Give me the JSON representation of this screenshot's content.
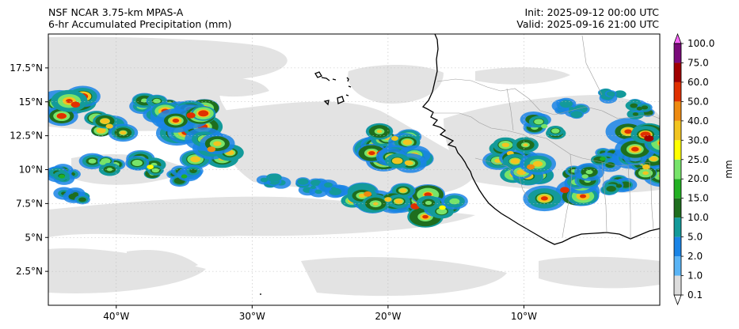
{
  "header": {
    "left_line1": "NSF NCAR 3.75-km MPAS-A",
    "left_line2": "6-hr Accumulated Precipitation (mm)",
    "right_line1": "Init: 2025-09-12 00:00 UTC",
    "right_line2": "Valid: 2025-09-16 21:00 UTC"
  },
  "axes": {
    "lon_range": [
      -45,
      0
    ],
    "lat_range": [
      0,
      20
    ],
    "lon_ticks": [
      {
        "value": -40,
        "label": "40°W"
      },
      {
        "value": -30,
        "label": "30°W"
      },
      {
        "value": -20,
        "label": "20°W"
      },
      {
        "value": -10,
        "label": "10°W"
      }
    ],
    "lat_ticks": [
      {
        "value": 2.5,
        "label": "2.5°N"
      },
      {
        "value": 5,
        "label": "5°N"
      },
      {
        "value": 7.5,
        "label": "7.5°N"
      },
      {
        "value": 10,
        "label": "10°N"
      },
      {
        "value": 12.5,
        "label": "12.5°N"
      },
      {
        "value": 15,
        "label": "15°N"
      },
      {
        "value": 17.5,
        "label": "17.5°N"
      }
    ]
  },
  "colorbar": {
    "unit_label": "mm",
    "levels": [
      "0.1",
      "1.0",
      "2.0",
      "5.0",
      "10.0",
      "15.0",
      "20.0",
      "25.0",
      "30.0",
      "40.0",
      "50.0",
      "60.0",
      "75.0",
      "100.0"
    ],
    "colors": [
      "#ffffff",
      "#dcdcdc",
      "#5ab4f5",
      "#1a84e6",
      "#139a9a",
      "#1e6e1e",
      "#22b022",
      "#77e46a",
      "#ffff00",
      "#f2c420",
      "#ee8a10",
      "#e03000",
      "#a00000",
      "#7a0a7a",
      "#ff66ff"
    ]
  },
  "chart_data": {
    "type": "map",
    "variable": "6-hr Accumulated Precipitation",
    "units": "mm",
    "lon_range": [
      -45,
      0
    ],
    "lat_range": [
      0,
      20
    ],
    "precip_cells": [
      {
        "region": "north-west band",
        "lon": -43,
        "lat": 14.8,
        "value": 55
      },
      {
        "region": "north-west band",
        "lon": -40.5,
        "lat": 13.2,
        "value": 32
      },
      {
        "region": "north-west band",
        "lon": -37,
        "lat": 14.5,
        "value": 28
      },
      {
        "region": "north-west band",
        "lon": -35,
        "lat": 13.5,
        "value": 62
      },
      {
        "region": "north-west band",
        "lon": -33,
        "lat": 11.5,
        "value": 45
      },
      {
        "region": "north-west band",
        "lon": -34.5,
        "lat": 14,
        "value": 52
      },
      {
        "region": "north-west band",
        "lon": -41,
        "lat": 10.5,
        "value": 22
      },
      {
        "region": "north-west band",
        "lon": -44,
        "lat": 9.5,
        "value": 18
      },
      {
        "region": "north-west band",
        "lon": -37.5,
        "lat": 10.2,
        "value": 26
      },
      {
        "region": "north-west band",
        "lon": -35,
        "lat": 9.5,
        "value": 16
      },
      {
        "region": "north-west band",
        "lon": -43,
        "lat": 8.2,
        "value": 12
      },
      {
        "region": "mid-Atlantic line",
        "lon": -28.5,
        "lat": 9.2,
        "value": 6
      },
      {
        "region": "mid-Atlantic line",
        "lon": -25.5,
        "lat": 8.7,
        "value": 8
      },
      {
        "region": "mid-Atlantic line",
        "lon": -24,
        "lat": 8.6,
        "value": 5
      },
      {
        "region": "central cluster",
        "lon": -20.5,
        "lat": 11.2,
        "value": 55
      },
      {
        "region": "central cluster",
        "lon": -19.5,
        "lat": 12.3,
        "value": 30
      },
      {
        "region": "central cluster",
        "lon": -18.5,
        "lat": 10.5,
        "value": 38
      },
      {
        "region": "central cluster",
        "lon": -21.5,
        "lat": 8.2,
        "value": 42
      },
      {
        "region": "central cluster",
        "lon": -18,
        "lat": 7.3,
        "value": 58
      },
      {
        "region": "central cluster",
        "lon": -16,
        "lat": 7.2,
        "value": 26
      },
      {
        "region": "central cluster",
        "lon": -20,
        "lat": 7.8,
        "value": 33
      },
      {
        "region": "West Africa",
        "lon": -11,
        "lat": 11.2,
        "value": 30
      },
      {
        "region": "West Africa",
        "lon": -9.5,
        "lat": 10.2,
        "value": 42
      },
      {
        "region": "West Africa",
        "lon": -8.5,
        "lat": 13.2,
        "value": 22
      },
      {
        "region": "West Africa",
        "lon": -7,
        "lat": 8.5,
        "value": 55
      },
      {
        "region": "West Africa",
        "lon": -5.5,
        "lat": 9.5,
        "value": 24
      },
      {
        "region": "West Africa",
        "lon": -4.2,
        "lat": 10.8,
        "value": 18
      },
      {
        "region": "West Africa",
        "lon": -3,
        "lat": 8.8,
        "value": 14
      },
      {
        "region": "West Africa",
        "lon": -6.5,
        "lat": 14.5,
        "value": 9
      },
      {
        "region": "West Africa",
        "lon": -3.5,
        "lat": 15.5,
        "value": 7
      },
      {
        "region": "east edge",
        "lon": -1,
        "lat": 10.2,
        "value": 38
      },
      {
        "region": "east edge",
        "lon": -0.8,
        "lat": 12.3,
        "value": 60
      },
      {
        "region": "east edge",
        "lon": -1.5,
        "lat": 14.5,
        "value": 12
      }
    ]
  }
}
